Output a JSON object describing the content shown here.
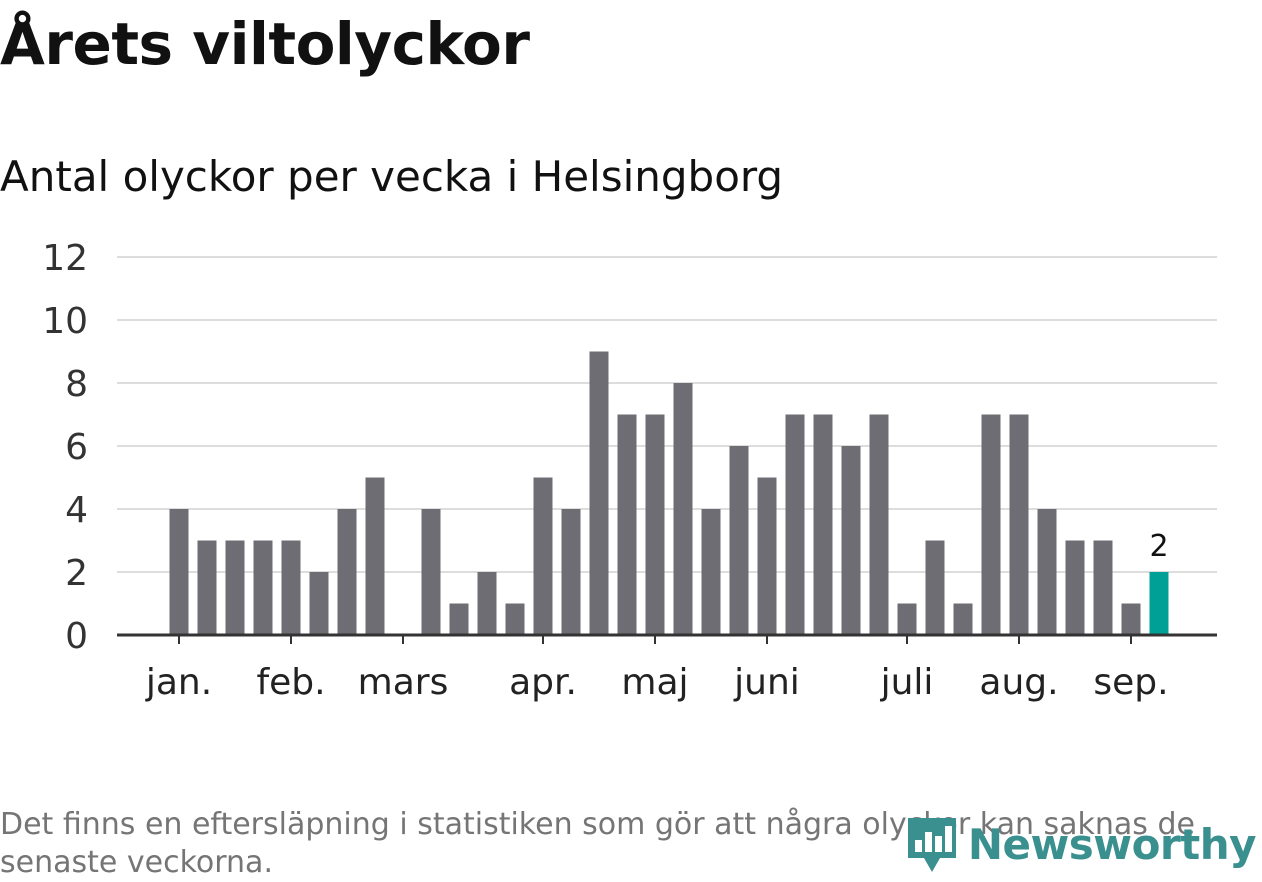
{
  "title": "Årets viltolyckor",
  "subtitle": "Antal olyckor per vecka i Helsingborg",
  "footnote": "Det finns en eftersläpning i statistiken som gör att några olyckor kan saknas de senaste veckorna.",
  "brand": {
    "name": "Newsworthy",
    "icon": "newsworthy-logo-icon",
    "color": "#3a8f8f"
  },
  "colors": {
    "bar": "#6e6d73",
    "highlight": "#00a096",
    "grid": "#dddddd",
    "axis": "#333333"
  },
  "chart_data": {
    "type": "bar",
    "ylim": [
      0,
      12
    ],
    "yticks": [
      0,
      2,
      4,
      6,
      8,
      10,
      12
    ],
    "grid": true,
    "month_labels": [
      {
        "label": "jan.",
        "week": 1
      },
      {
        "label": "feb.",
        "week": 5
      },
      {
        "label": "mars",
        "week": 9
      },
      {
        "label": "apr.",
        "week": 14
      },
      {
        "label": "maj",
        "week": 18
      },
      {
        "label": "juni",
        "week": 22
      },
      {
        "label": "juli",
        "week": 27
      },
      {
        "label": "aug.",
        "week": 31
      },
      {
        "label": "sep.",
        "week": 35
      }
    ],
    "weeks": [
      1,
      2,
      3,
      4,
      5,
      6,
      7,
      8,
      9,
      10,
      11,
      12,
      13,
      14,
      15,
      16,
      17,
      18,
      19,
      20,
      21,
      22,
      23,
      24,
      25,
      26,
      27,
      28,
      29,
      30,
      31,
      32,
      33,
      34,
      35,
      36
    ],
    "values": [
      4,
      3,
      3,
      3,
      3,
      2,
      4,
      5,
      0,
      4,
      1,
      2,
      1,
      5,
      4,
      9,
      7,
      7,
      8,
      4,
      6,
      5,
      7,
      7,
      6,
      7,
      1,
      3,
      1,
      7,
      7,
      4,
      3,
      3,
      1,
      2
    ],
    "highlight": {
      "index": 35,
      "label": "2"
    }
  }
}
